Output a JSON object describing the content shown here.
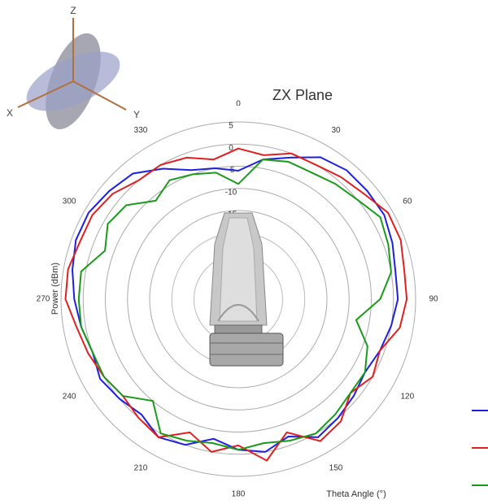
{
  "chart_data": {
    "type": "polar",
    "title": "ZX Plane",
    "theta_label": "Theta  Angle (°)",
    "r_label": "Power (dBm)",
    "annotations": [
      "Z",
      "X",
      "Y"
    ],
    "theta": [
      0,
      10,
      20,
      30,
      40,
      50,
      60,
      70,
      80,
      90,
      100,
      110,
      120,
      130,
      140,
      150,
      160,
      170,
      180,
      190,
      200,
      210,
      220,
      230,
      240,
      250,
      260,
      270,
      280,
      290,
      300,
      310,
      320,
      330,
      340,
      350
    ],
    "thetaticks": [
      0,
      30,
      60,
      90,
      120,
      150,
      180,
      210,
      240,
      270,
      300,
      330
    ],
    "rlim": [
      -35,
      5
    ],
    "rticks": [
      -15,
      -10,
      -5,
      0,
      5
    ],
    "grid": true,
    "series": [
      {
        "color": "#1f1fe0",
        "values": [
          -6,
          -3,
          -1,
          2,
          3,
          3,
          3,
          2,
          1,
          1,
          0,
          -1,
          -2,
          -1,
          0,
          1,
          -2,
          0,
          -1,
          -3,
          0,
          1,
          -1,
          0,
          1,
          0,
          1,
          2,
          3,
          4,
          4,
          3,
          2,
          -1,
          -4,
          -5
        ]
      },
      {
        "color": "#e02020",
        "values": [
          -1,
          -2,
          0,
          0,
          1,
          2,
          4,
          4,
          3,
          3,
          2,
          -1,
          0,
          -2,
          1,
          2,
          -3,
          2,
          -2,
          0,
          -3,
          1,
          0,
          -1,
          0,
          1,
          2,
          4,
          4,
          3,
          3,
          2,
          0,
          0,
          -1,
          -3
        ]
      },
      {
        "color": "#1a9a1a",
        "values": [
          -9,
          -3,
          -2,
          -2,
          -1,
          0,
          2,
          1,
          0,
          -3,
          -8,
          -4,
          -2,
          -2,
          -1,
          0,
          -1,
          -2,
          -1,
          -2,
          -1,
          0,
          -5,
          -1,
          0,
          0,
          1,
          1,
          1,
          -3,
          -1,
          -2,
          -6,
          -4,
          -5,
          -6
        ]
      }
    ]
  }
}
